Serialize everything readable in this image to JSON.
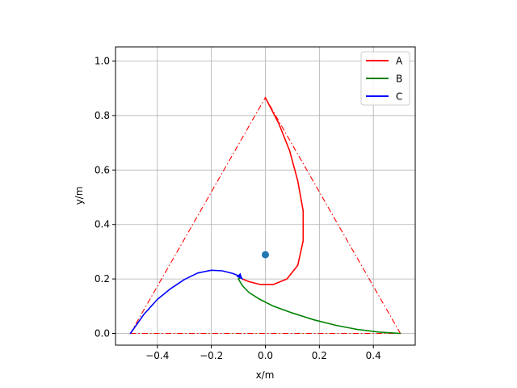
{
  "chart_data": {
    "type": "line",
    "xlabel": "x/m",
    "ylabel": "y/m",
    "xlim": [
      -0.555,
      0.555
    ],
    "ylim": [
      -0.043,
      1.052
    ],
    "xticks": [
      -0.4,
      -0.2,
      0.0,
      0.2,
      0.4
    ],
    "yticks": [
      0.0,
      0.2,
      0.4,
      0.6,
      0.8,
      1.0
    ],
    "xtick_labels": [
      "−0.4",
      "−0.2",
      "0.0",
      "0.2",
      "0.4"
    ],
    "ytick_labels": [
      "0.0",
      "0.2",
      "0.4",
      "0.6",
      "0.8",
      "1.0"
    ],
    "grid": true,
    "legend_position": "top-right",
    "triangle": {
      "color": "#ff0000",
      "style": "dash-dot",
      "points": [
        [
          -0.5,
          0.0
        ],
        [
          0.5,
          0.0
        ],
        [
          0.0,
          0.866
        ],
        [
          -0.5,
          0.0
        ]
      ]
    },
    "center_marker": {
      "x": 0.0,
      "y": 0.289,
      "color": "#1f77b4"
    },
    "series": [
      {
        "name": "A",
        "color": "#ff0000",
        "points": [
          [
            0.0,
            0.866
          ],
          [
            0.05,
            0.77
          ],
          [
            0.09,
            0.67
          ],
          [
            0.12,
            0.56
          ],
          [
            0.14,
            0.45
          ],
          [
            0.14,
            0.34
          ],
          [
            0.12,
            0.25
          ],
          [
            0.08,
            0.2
          ],
          [
            0.03,
            0.18
          ],
          [
            -0.02,
            0.18
          ],
          [
            -0.06,
            0.19
          ],
          [
            -0.085,
            0.2
          ]
        ]
      },
      {
        "name": "B",
        "color": "#008000",
        "points": [
          [
            0.5,
            0.0
          ],
          [
            0.42,
            0.005
          ],
          [
            0.34,
            0.015
          ],
          [
            0.26,
            0.03
          ],
          [
            0.18,
            0.05
          ],
          [
            0.1,
            0.075
          ],
          [
            0.03,
            0.1
          ],
          [
            -0.02,
            0.125
          ],
          [
            -0.06,
            0.15
          ],
          [
            -0.085,
            0.175
          ],
          [
            -0.1,
            0.2
          ],
          [
            -0.09,
            0.205
          ]
        ]
      },
      {
        "name": "C",
        "color": "#0000ff",
        "points": [
          [
            -0.5,
            0.0
          ],
          [
            -0.45,
            0.07
          ],
          [
            -0.4,
            0.125
          ],
          [
            -0.35,
            0.165
          ],
          [
            -0.3,
            0.198
          ],
          [
            -0.25,
            0.222
          ],
          [
            -0.2,
            0.232
          ],
          [
            -0.16,
            0.23
          ],
          [
            -0.12,
            0.22
          ],
          [
            -0.095,
            0.21
          ],
          [
            -0.085,
            0.2
          ]
        ]
      }
    ]
  }
}
